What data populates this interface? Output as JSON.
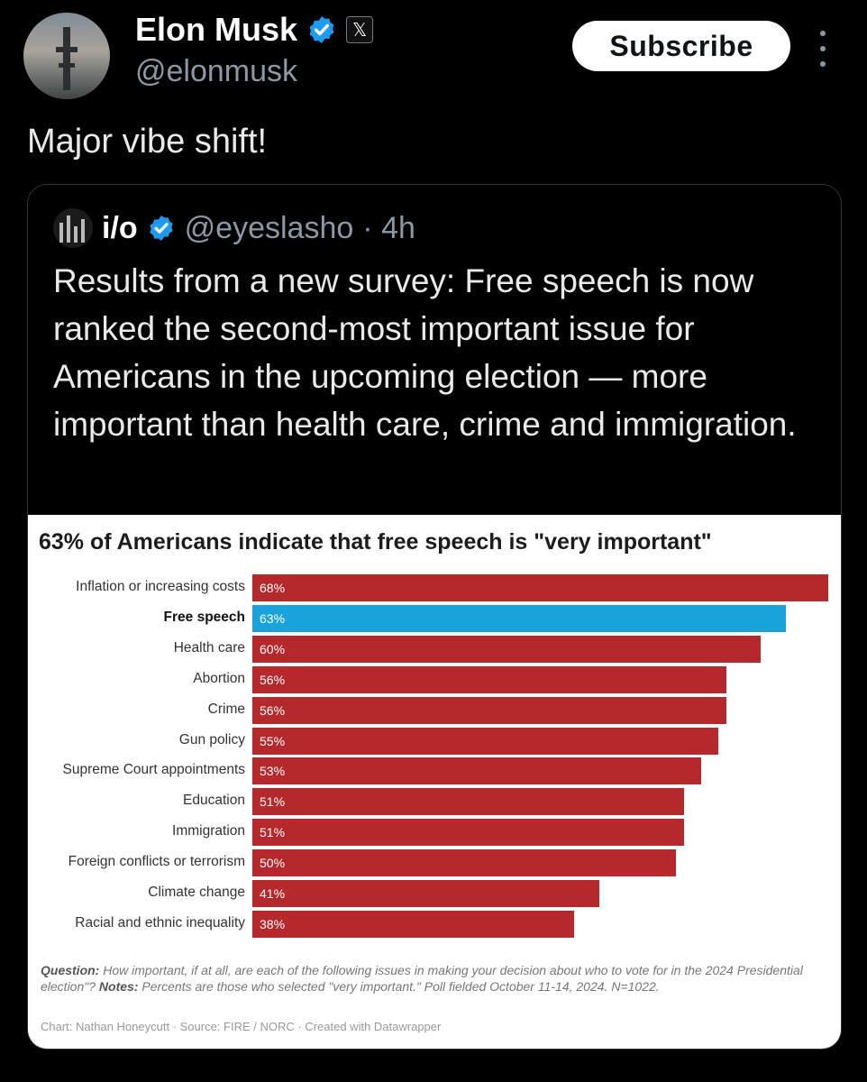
{
  "author": {
    "name": "Elon Musk",
    "handle": "@elonmusk",
    "avatar_icon": "rocket-tower-avatar",
    "verified_color": "#1d9bf0"
  },
  "subscribe_label": "Subscribe",
  "tweet_text": "Major vibe shift!",
  "quote": {
    "name": "i/o",
    "handle": "@eyeslasho",
    "time": "· 4h",
    "text": "Results from a new survey: Free speech is now ranked the second-most important issue for Americans in the upcoming election — more important than health care, crime and immigration."
  },
  "chart_data": {
    "type": "bar",
    "orientation": "horizontal",
    "title": "63% of Americans indicate that free speech is \"very important\"",
    "categories": [
      "Inflation or increasing costs",
      "Free speech",
      "Health care",
      "Abortion",
      "Crime",
      "Gun policy",
      "Supreme Court appointments",
      "Education",
      "Immigration",
      "Foreign conflicts or terrorism",
      "Climate change",
      "Racial and ethnic inequality"
    ],
    "values": [
      68,
      63,
      60,
      56,
      56,
      55,
      53,
      51,
      51,
      50,
      41,
      38
    ],
    "labels": [
      "68%",
      "63%",
      "60%",
      "56%",
      "56%",
      "55%",
      "53%",
      "51%",
      "51%",
      "50%",
      "41%",
      "38%"
    ],
    "highlight_index": 1,
    "colors": {
      "default": "#b5282c",
      "highlight": "#1aa2db"
    },
    "xlim": [
      0,
      68
    ],
    "note_question_label": "Question:",
    "note_question": "How important, if at all, are each of the following issues in making your decision about who to vote for in the 2024 Presidential election\"?",
    "note_notes_label": "Notes:",
    "note_notes": "Percents are those who selected \"very important.\" Poll fielded October 11-14, 2024. N=1022.",
    "credit": "Chart: Nathan Honeycutt · Source: FIRE / NORC · Created with Datawrapper"
  }
}
